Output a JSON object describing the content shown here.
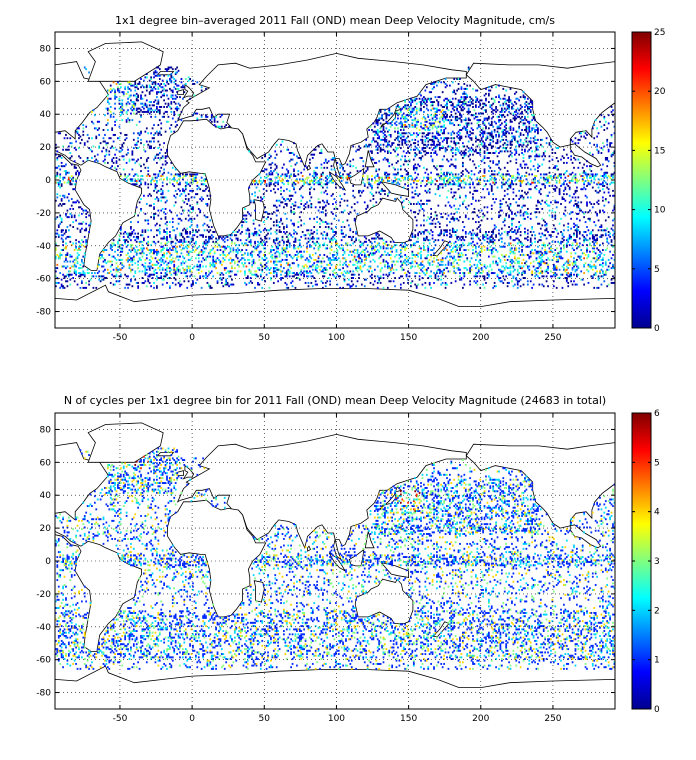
{
  "chart_data": [
    {
      "type": "heatmap",
      "title": "1x1 degree bin–averaged 2011 Fall (OND) mean Deep Velocity Magnitude, cm/s",
      "xlim": [
        -95,
        293
      ],
      "ylim": [
        -90,
        90
      ],
      "xticks": [
        "-50",
        "0",
        "50",
        "100",
        "150",
        "200",
        "250"
      ],
      "xtick_values": [
        -50,
        0,
        50,
        100,
        150,
        200,
        250
      ],
      "yticks": [
        "80",
        "60",
        "40",
        "20",
        "0",
        "-20",
        "-40",
        "-60",
        "-80"
      ],
      "ytick_values": [
        80,
        60,
        40,
        20,
        0,
        -20,
        -40,
        -60,
        -80
      ],
      "grid": true,
      "colorbar": {
        "min": 0,
        "max": 25,
        "colormap": "jet",
        "ticks": [
          "25",
          "20",
          "15",
          "10",
          "5",
          "0"
        ],
        "tick_values": [
          25,
          20,
          15,
          10,
          5,
          0
        ]
      }
    },
    {
      "type": "heatmap",
      "title": "N of cycles per 1x1 degree bin for 2011 Fall (OND) mean Deep Velocity Magnitude (24683 in total)",
      "xlim": [
        -95,
        293
      ],
      "ylim": [
        -90,
        90
      ],
      "xticks": [
        "-50",
        "0",
        "50",
        "100",
        "150",
        "200",
        "250"
      ],
      "xtick_values": [
        -50,
        0,
        50,
        100,
        150,
        200,
        250
      ],
      "yticks": [
        "80",
        "60",
        "40",
        "20",
        "0",
        "-20",
        "-40",
        "-60",
        "-80"
      ],
      "ytick_values": [
        80,
        60,
        40,
        20,
        0,
        -20,
        -40,
        -60,
        -80
      ],
      "grid": true,
      "colorbar": {
        "min": 0,
        "max": 6,
        "colormap": "jet",
        "ticks": [
          "6",
          "5",
          "4",
          "3",
          "2",
          "1",
          "0"
        ],
        "tick_values": [
          6,
          5,
          4,
          3,
          2,
          1,
          0
        ]
      }
    }
  ]
}
